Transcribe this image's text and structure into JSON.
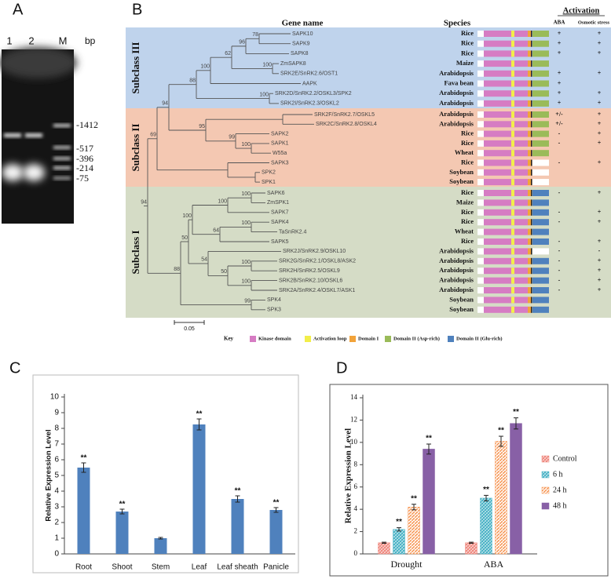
{
  "panel_a": {
    "label": "A",
    "lanes": [
      "1",
      "2",
      "M"
    ],
    "unit": "bp",
    "markers": [
      "-1412",
      "-517",
      "-396",
      "-214",
      "-75"
    ]
  },
  "panel_b": {
    "label": "B",
    "headers": {
      "gene": "Gene name",
      "species": "Species",
      "activation": "Activation",
      "aba": "ABA",
      "osmotic": "Osmotic stress"
    },
    "subclasses": [
      {
        "name": "Subclass III",
        "color": "#bfd3ec",
        "rows": [
          {
            "gene": "SAPK10",
            "species": "Rice",
            "aba": "+",
            "osmotic": "+",
            "c_terminal": "#9abb59"
          },
          {
            "gene": "SAPK9",
            "species": "Rice",
            "aba": "+",
            "osmotic": "+",
            "c_terminal": "#9abb59"
          },
          {
            "gene": "SAPK8",
            "species": "Rice",
            "aba": "+",
            "osmotic": "+",
            "c_terminal": "#9abb59"
          },
          {
            "gene": "ZmSAPK8",
            "species": "Maize",
            "aba": null,
            "osmotic": null,
            "c_terminal": "#9abb59"
          },
          {
            "gene": "SRK2E/SnRK2.6/OST1",
            "species": "Arabidopsis",
            "aba": "+",
            "osmotic": "+",
            "c_terminal": "#9abb59"
          },
          {
            "gene": "AAPK",
            "species": "Fava bean",
            "aba": "+",
            "osmotic": null,
            "c_terminal": "#9abb59"
          },
          {
            "gene": "SRK2D/SnRK2.2/OSKL3/SPK2",
            "species": "Arabidopsis",
            "aba": "+",
            "osmotic": "+",
            "c_terminal": "#9abb59"
          },
          {
            "gene": "SRK2I/SnRK2.3/OSKL2",
            "species": "Arabidopsis",
            "aba": "+",
            "osmotic": "+",
            "c_terminal": "#9abb59"
          }
        ]
      },
      {
        "name": "Subclass II",
        "color": "#f4c8b2",
        "rows": [
          {
            "gene": "SRK2F/SnRK2.7/OSKL5",
            "species": "Arabidopsis",
            "aba": "+/-",
            "osmotic": "+",
            "c_terminal": "#9abb59"
          },
          {
            "gene": "SRK2C/SnRK2.8/OSKL4",
            "species": "Arabidopsis",
            "aba": "+/-",
            "osmotic": "+",
            "c_terminal": "#9abb59"
          },
          {
            "gene": "SAPK2",
            "species": "Rice",
            "aba": "-",
            "osmotic": "+",
            "c_terminal": "#9abb59"
          },
          {
            "gene": "SAPK1",
            "species": "Rice",
            "aba": "-",
            "osmotic": "+",
            "c_terminal": "#9abb59"
          },
          {
            "gene": "W55a",
            "species": "Wheat",
            "aba": null,
            "osmotic": null,
            "c_terminal": "#9abb59"
          },
          {
            "gene": "SAPK3",
            "species": "Rice",
            "aba": "-",
            "osmotic": "+",
            "c_terminal": "#ffffff"
          },
          {
            "gene": "SPK2",
            "species": "Soybean",
            "aba": null,
            "osmotic": null,
            "c_terminal": "#ffffff"
          },
          {
            "gene": "SPK1",
            "species": "Soybean",
            "aba": null,
            "osmotic": null,
            "c_terminal": "#ffffff"
          }
        ]
      },
      {
        "name": "Subclass I",
        "color": "#d5dcc6",
        "rows": [
          {
            "gene": "SAPK6",
            "species": "Rice",
            "aba": "-",
            "osmotic": "+",
            "c_terminal": "#4f81bd"
          },
          {
            "gene": "ZmSPK1",
            "species": "Maize",
            "aba": null,
            "osmotic": null,
            "c_terminal": "#4f81bd"
          },
          {
            "gene": "SAPK7",
            "species": "Rice",
            "aba": "-",
            "osmotic": "+",
            "c_terminal": "#4f81bd"
          },
          {
            "gene": "SAPK4",
            "species": "Rice",
            "aba": "-",
            "osmotic": "+",
            "c_terminal": "#4f81bd"
          },
          {
            "gene": "TaSnRK2.4",
            "species": "Wheat",
            "aba": null,
            "osmotic": null,
            "c_terminal": "#4f81bd"
          },
          {
            "gene": "SAPK5",
            "species": "Rice",
            "aba": "-",
            "osmotic": "+",
            "c_terminal": "#4f81bd"
          },
          {
            "gene": "SRK2J/SnRK2.9/OSKL10",
            "species": "Arabidopsis",
            "aba": "-",
            "osmotic": "-",
            "c_terminal": "#ffffff"
          },
          {
            "gene": "SRK2G/SnRK2.1/OSKL8/ASK2",
            "species": "Arabidopsis",
            "aba": "-",
            "osmotic": "+",
            "c_terminal": "#4f81bd"
          },
          {
            "gene": "SRK2H/SnRK2.5/OSKL9",
            "species": "Arabidopsis",
            "aba": "-",
            "osmotic": "+",
            "c_terminal": "#4f81bd"
          },
          {
            "gene": "SRK2B/SnRK2.10/OSKL6",
            "species": "Arabidopsis",
            "aba": "-",
            "osmotic": "+",
            "c_terminal": "#4f81bd"
          },
          {
            "gene": "SRK2A/SnRK2.4/OSKL7/ASK1",
            "species": "Arabidopsis",
            "aba": "-",
            "osmotic": "+",
            "c_terminal": "#4f81bd"
          },
          {
            "gene": "SPK4",
            "species": "Soybean",
            "aba": null,
            "osmotic": null,
            "c_terminal": "#4f81bd"
          },
          {
            "gene": "SPK3",
            "species": "Soybean",
            "aba": null,
            "osmotic": null,
            "c_terminal": "#4f81bd"
          }
        ]
      }
    ],
    "bootstrap": [
      78,
      96,
      100,
      62,
      100,
      100,
      88,
      100,
      99,
      95,
      94,
      69,
      100,
      100,
      100,
      64,
      100,
      100,
      100,
      50,
      54,
      50,
      99,
      88,
      94
    ],
    "scale": "0.05",
    "key": {
      "title": "Key",
      "items": [
        {
          "name": "Kinase domain",
          "color": "#d67cc3"
        },
        {
          "name": "Activation loop",
          "color": "#f2ee4a"
        },
        {
          "name": "Domain I",
          "color": "#f2a33a"
        },
        {
          "name": "Domain II (Asp-rich)",
          "color": "#9abb59"
        },
        {
          "name": "Domain II (Glu-rich)",
          "color": "#4f81bd"
        }
      ]
    }
  },
  "chart_data": [
    {
      "type": "bar",
      "panel": "C",
      "ylabel": "Relative Expression Level",
      "categories": [
        "Root",
        "Shoot",
        "Stem",
        "Leaf",
        "Leaf sheath",
        "Panicle"
      ],
      "values": [
        5.5,
        2.7,
        1.0,
        8.25,
        3.5,
        2.8
      ],
      "errors": [
        0.3,
        0.15,
        0.05,
        0.35,
        0.2,
        0.15
      ],
      "significance": [
        "**",
        "**",
        null,
        "**",
        "**",
        "**"
      ],
      "color": "#4f81bd",
      "ylim": [
        0,
        10
      ],
      "yticks": [
        0,
        1,
        2,
        3,
        4,
        5,
        6,
        7,
        8,
        9,
        10
      ]
    },
    {
      "type": "grouped_bar",
      "panel": "D",
      "ylabel": "Relative Expression Level",
      "categories": [
        "Drought",
        "ABA"
      ],
      "series": [
        {
          "name": "Control",
          "color": "#ef8a80",
          "values": [
            1.0,
            1.0
          ],
          "errors": [
            0.05,
            0.05
          ],
          "significance": [
            null,
            null
          ]
        },
        {
          "name": "6 h",
          "color": "#4bb3c6",
          "values": [
            2.2,
            5.0
          ],
          "errors": [
            0.15,
            0.25
          ],
          "significance": [
            "**",
            "**"
          ]
        },
        {
          "name": "24 h",
          "color": "#f79a5a",
          "values": [
            4.2,
            10.1
          ],
          "errors": [
            0.25,
            0.45
          ],
          "significance": [
            "**",
            "**"
          ]
        },
        {
          "name": "48 h",
          "color": "#8860a6",
          "values": [
            9.4,
            11.7
          ],
          "errors": [
            0.45,
            0.5
          ],
          "significance": [
            "**",
            "**"
          ]
        }
      ],
      "ylim": [
        0,
        14
      ],
      "yticks": [
        0,
        2,
        4,
        6,
        8,
        10,
        12,
        14
      ],
      "legend": "right"
    }
  ]
}
